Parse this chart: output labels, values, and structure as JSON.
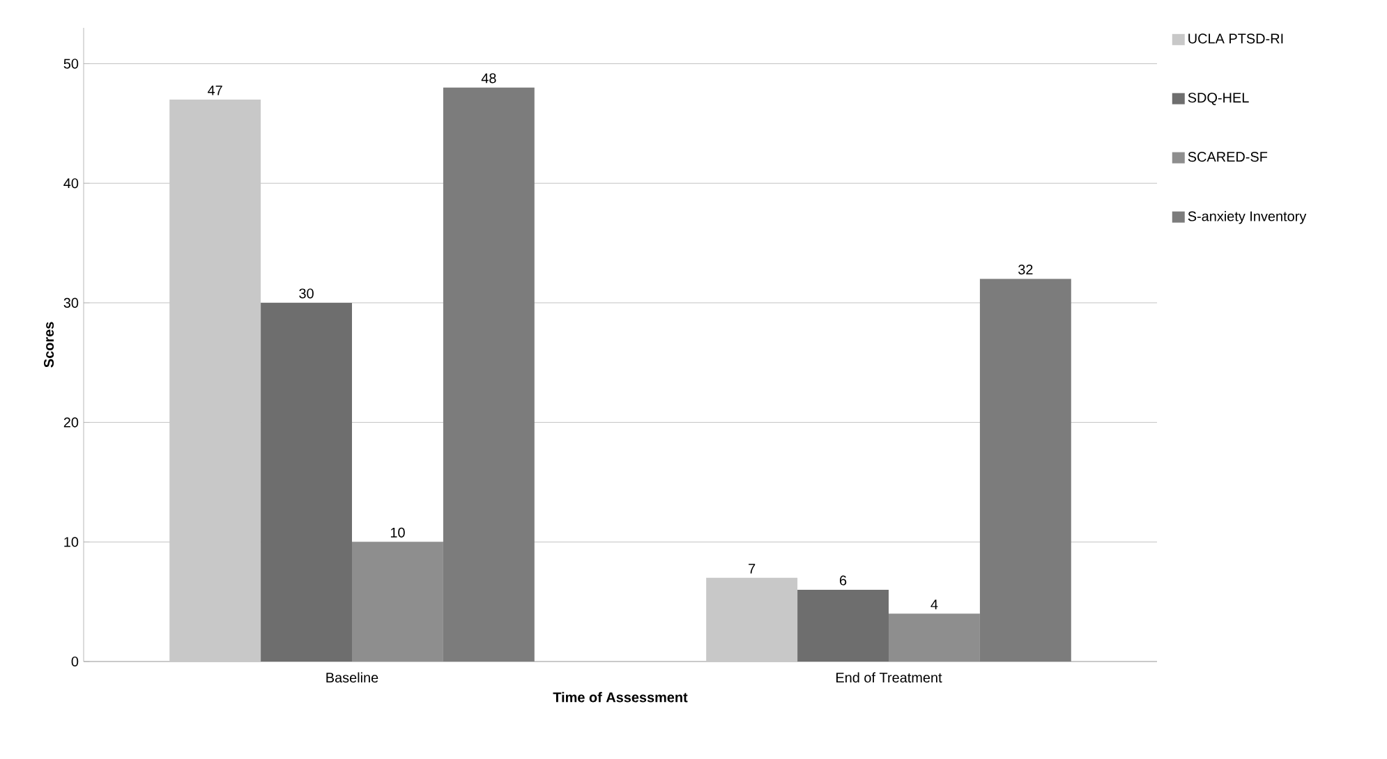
{
  "chart_data": {
    "type": "bar",
    "xlabel": "Time of Assessment",
    "ylabel": "Scores",
    "categories": [
      "Baseline",
      "End of Treatment"
    ],
    "series": [
      {
        "name": "UCLA PTSD-RI",
        "color": "#c8c8c8",
        "values": [
          47,
          7
        ]
      },
      {
        "name": "SDQ-HEL",
        "color": "#6e6e6e",
        "values": [
          30,
          6
        ]
      },
      {
        "name": "SCARED-SF",
        "color": "#8e8e8e",
        "values": [
          10,
          4
        ]
      },
      {
        "name": "S-anxiety Inventory",
        "color": "#7c7c7c",
        "values": [
          48,
          32
        ]
      }
    ],
    "ylim": [
      0,
      53
    ],
    "yticks": [
      0,
      10,
      20,
      30,
      40,
      50
    ],
    "grid": "y",
    "legend": "right",
    "data_labels": true
  }
}
